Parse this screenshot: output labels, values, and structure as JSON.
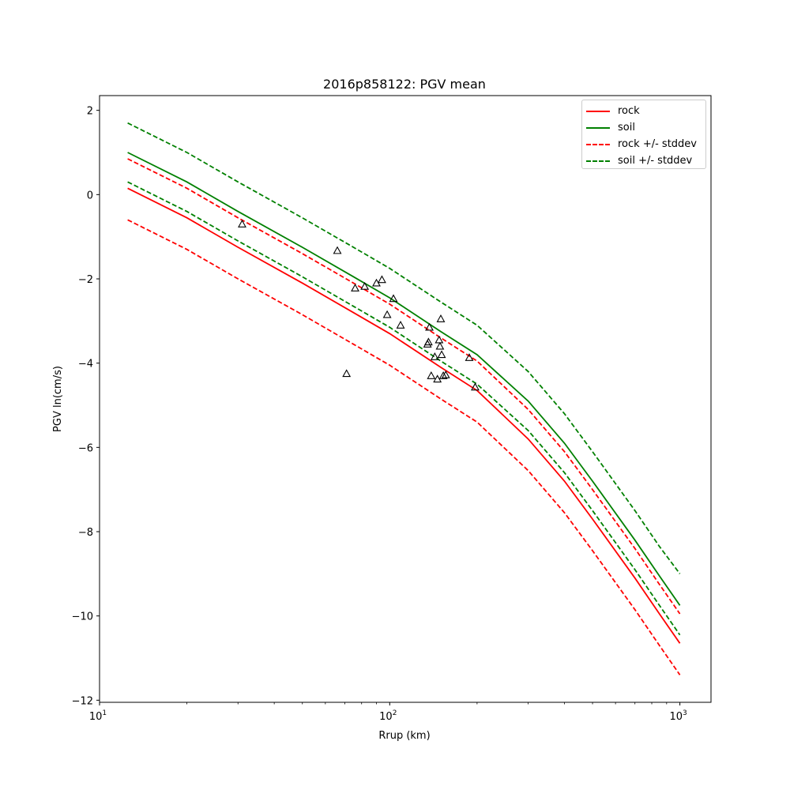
{
  "chart_data": {
    "type": "line",
    "title": "2016p858122: PGV mean",
    "xlabel": "Rrup (km)",
    "ylabel": "PGV ln(cm/s)",
    "xscale": "log",
    "xlim": [
      10,
      1280
    ],
    "ylim": [
      -12.05,
      2.35
    ],
    "x_ticks": [
      {
        "value": 10,
        "label": "10",
        "exp": "1"
      },
      {
        "value": 100,
        "label": "10",
        "exp": "2"
      },
      {
        "value": 1000,
        "label": "10",
        "exp": "3"
      }
    ],
    "y_ticks": [
      {
        "value": 2,
        "label": "2"
      },
      {
        "value": 0,
        "label": "0"
      },
      {
        "value": -2,
        "label": "−2"
      },
      {
        "value": -4,
        "label": "−4"
      },
      {
        "value": -6,
        "label": "−6"
      },
      {
        "value": -8,
        "label": "−8"
      },
      {
        "value": -10,
        "label": "−10"
      },
      {
        "value": -12,
        "label": "−12"
      }
    ],
    "grid": false,
    "legend_position": "top-right",
    "series": [
      {
        "name": "rock",
        "color": "#ff0000",
        "dash": false,
        "x": [
          12.5,
          20,
          30,
          50,
          75,
          100,
          150,
          200,
          300,
          400,
          500,
          700,
          850,
          1000
        ],
        "y": [
          0.15,
          -0.55,
          -1.25,
          -2.1,
          -2.8,
          -3.3,
          -4.1,
          -4.65,
          -5.8,
          -6.8,
          -7.7,
          -9.1,
          -9.95,
          -10.65
        ]
      },
      {
        "name": "soil",
        "color": "#008000",
        "dash": false,
        "x": [
          12.5,
          20,
          30,
          50,
          75,
          100,
          150,
          200,
          300,
          400,
          500,
          700,
          850,
          1000
        ],
        "y": [
          1.0,
          0.3,
          -0.4,
          -1.25,
          -1.95,
          -2.45,
          -3.25,
          -3.8,
          -4.9,
          -5.9,
          -6.8,
          -8.2,
          -9.05,
          -9.75
        ]
      },
      {
        "name": "rock +/- stddev",
        "color": "#ff0000",
        "dash": true,
        "x": [
          12.5,
          20,
          30,
          50,
          75,
          100,
          150,
          200,
          300,
          400,
          500,
          700,
          850,
          1000
        ],
        "y": [
          0.85,
          0.15,
          -0.55,
          -1.4,
          -2.1,
          -2.6,
          -3.4,
          -3.95,
          -5.1,
          -6.1,
          -7.0,
          -8.4,
          -9.25,
          -9.95
        ]
      },
      {
        "name": "",
        "color": "#ff0000",
        "dash": true,
        "x": [
          12.5,
          20,
          30,
          50,
          75,
          100,
          150,
          200,
          300,
          400,
          500,
          700,
          850,
          1000
        ],
        "y": [
          -0.6,
          -1.3,
          -2.0,
          -2.85,
          -3.55,
          -4.05,
          -4.85,
          -5.4,
          -6.55,
          -7.55,
          -8.45,
          -9.85,
          -10.7,
          -11.4
        ]
      },
      {
        "name": "soil +/- stddev",
        "color": "#008000",
        "dash": true,
        "x": [
          12.5,
          20,
          30,
          50,
          75,
          100,
          150,
          200,
          300,
          400,
          500,
          700,
          850,
          1000
        ],
        "y": [
          1.7,
          1.0,
          0.3,
          -0.55,
          -1.25,
          -1.75,
          -2.55,
          -3.1,
          -4.2,
          -5.2,
          -6.1,
          -7.5,
          -8.35,
          -9.0
        ]
      },
      {
        "name": "",
        "color": "#008000",
        "dash": true,
        "x": [
          12.5,
          20,
          30,
          50,
          75,
          100,
          150,
          200,
          300,
          400,
          500,
          700,
          850,
          1000
        ],
        "y": [
          0.3,
          -0.4,
          -1.1,
          -1.95,
          -2.65,
          -3.15,
          -3.95,
          -4.5,
          -5.6,
          -6.6,
          -7.5,
          -8.9,
          -9.75,
          -10.45
        ]
      }
    ],
    "observations": {
      "marker": "triangle",
      "x": [
        31,
        66,
        71,
        76,
        82,
        90,
        94,
        98,
        103,
        109,
        135,
        136,
        137,
        139,
        143,
        146,
        148,
        149,
        150,
        151,
        153,
        156,
        188,
        197
      ],
      "y": [
        -0.7,
        -1.33,
        -4.25,
        -2.22,
        -2.18,
        -2.1,
        -2.02,
        -2.85,
        -2.47,
        -3.1,
        -3.55,
        -3.5,
        -3.15,
        -4.3,
        -3.85,
        -4.38,
        -3.45,
        -3.6,
        -2.95,
        -3.8,
        -4.3,
        -4.28,
        -3.87,
        -4.57
      ]
    }
  }
}
